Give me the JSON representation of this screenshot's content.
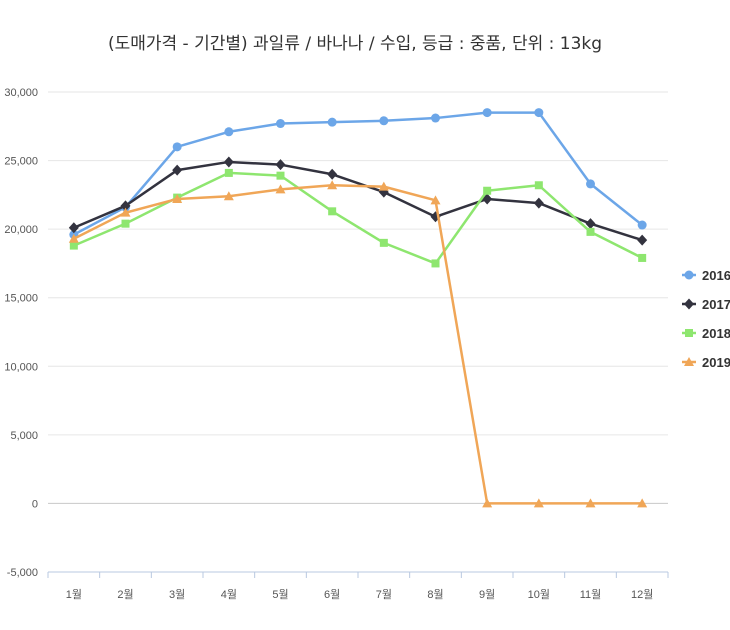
{
  "chart_data": {
    "type": "line",
    "title": "(도매가격 - 기간별) 과일류 / 바나나 / 수입, 등급 : 중품, 단위 : 13kg",
    "xlabel": "",
    "ylabel": "",
    "categories": [
      "1월",
      "2월",
      "3월",
      "4월",
      "5월",
      "6월",
      "7월",
      "8월",
      "9월",
      "10월",
      "11월",
      "12월"
    ],
    "ylim": [
      -5000,
      30000
    ],
    "yticks": [
      -5000,
      0,
      5000,
      10000,
      15000,
      20000,
      25000,
      30000
    ],
    "ytick_labels": [
      "-5,000",
      "0",
      "5,000",
      "10,000",
      "15,000",
      "20,000",
      "25,000",
      "30,000"
    ],
    "grid": true,
    "legend_position": "right",
    "series": [
      {
        "name": "2016",
        "color": "#6ca6e8",
        "marker": "circle",
        "values": [
          19600,
          21600,
          26000,
          27100,
          27700,
          27800,
          27900,
          28100,
          28500,
          28500,
          23300,
          20300
        ]
      },
      {
        "name": "2017",
        "color": "#33333f",
        "marker": "diamond",
        "values": [
          20100,
          21700,
          24300,
          24900,
          24700,
          24000,
          22700,
          20900,
          22200,
          21900,
          20400,
          19200
        ]
      },
      {
        "name": "2018",
        "color": "#8ee66f",
        "marker": "square",
        "values": [
          18800,
          20400,
          22300,
          24100,
          23900,
          21300,
          19000,
          17500,
          22800,
          23200,
          19800,
          17900
        ]
      },
      {
        "name": "2019",
        "color": "#f0a657",
        "marker": "triangle",
        "values": [
          19300,
          21200,
          22200,
          22400,
          22900,
          23200,
          23100,
          22100,
          0,
          0,
          0,
          0
        ]
      }
    ]
  }
}
